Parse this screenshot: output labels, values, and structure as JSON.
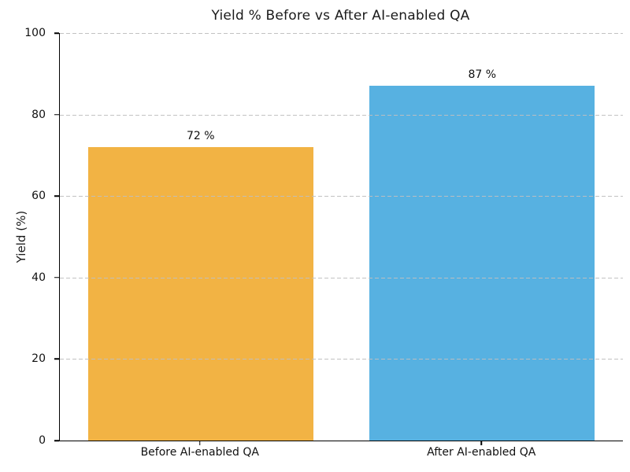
{
  "chart_data": {
    "type": "bar",
    "title": "Yield % Before vs After AI-enabled QA",
    "categories": [
      "Before AI-enabled QA",
      "After AI-enabled QA"
    ],
    "values": [
      72,
      87
    ],
    "value_labels": [
      "72 %",
      "87 %"
    ],
    "bar_colors": [
      "#F2B344",
      "#57B1E1"
    ],
    "xlabel": "",
    "ylabel": "Yield (%)",
    "ylim": [
      0,
      100
    ],
    "yticks": [
      0,
      20,
      40,
      60,
      80,
      100
    ],
    "bar_width_fraction": 0.4,
    "grid": "horizontal-dashed",
    "grid_color": "#bfbfbf",
    "legend": "none"
  }
}
